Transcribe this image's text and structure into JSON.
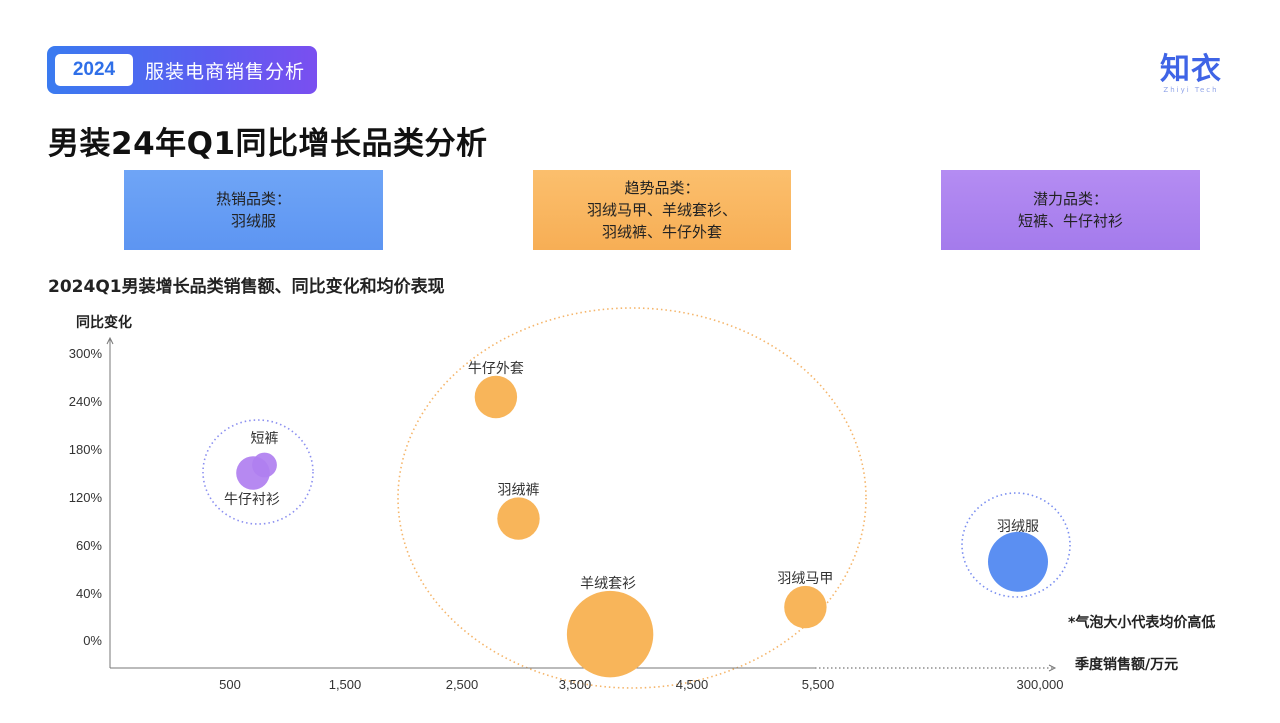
{
  "header": {
    "year": "2024",
    "title": "服装电商销售分析",
    "logo_main": "知衣",
    "logo_sub": "Zhiyi Tech"
  },
  "page_title": "男装24年Q1同比增长品类分析",
  "categories": {
    "hot": {
      "heading": "热销品类：",
      "items": "羽绒服"
    },
    "trend": {
      "heading": "趋势品类：",
      "line1": "羽绒马甲、羊绒套衫、",
      "line2": "羽绒裤、牛仔外套"
    },
    "potential": {
      "heading": "潜力品类：",
      "items": "短裤、牛仔衬衫"
    }
  },
  "chart_title": "2024Q1男装增长品类销售额、同比变化和均价表现",
  "chart_data": {
    "type": "scatter",
    "title": "2024Q1男装增长品类销售额、同比变化和均价表现",
    "xlabel": "季度销售额/万元",
    "ylabel": "同比变化",
    "x_ticks": [
      "500",
      "1,500",
      "2,500",
      "3,500",
      "4,500",
      "5,500",
      "300,000"
    ],
    "y_ticks": [
      "0%",
      "40%",
      "60%",
      "120%",
      "180%",
      "240%",
      "300%"
    ],
    "note": "*气泡大小代表均价高低",
    "colors": {
      "trend": "#f8b55a",
      "hot": "#5b8ff2",
      "potential": "#b07ff0",
      "axis": "#777777"
    },
    "series": [
      {
        "group": "potential",
        "points": [
          {
            "name": "短裤",
            "x": 800,
            "y": 160,
            "size": 1
          },
          {
            "name": "牛仔衬衫",
            "x": 700,
            "y": 150,
            "size": 2
          }
        ]
      },
      {
        "group": "trend",
        "points": [
          {
            "name": "牛仔外套",
            "x": 2800,
            "y": 245,
            "size": 3
          },
          {
            "name": "羽绒裤",
            "x": 3000,
            "y": 93,
            "size": 3
          },
          {
            "name": "羊绒套衫",
            "x": 3800,
            "y": 5,
            "size": 8
          },
          {
            "name": "羽绒马甲",
            "x": 5400,
            "y": 28,
            "size": 3
          }
        ]
      },
      {
        "group": "hot",
        "points": [
          {
            "name": "羽绒服",
            "x": 300000,
            "y": 53,
            "size": 5
          }
        ]
      }
    ]
  }
}
